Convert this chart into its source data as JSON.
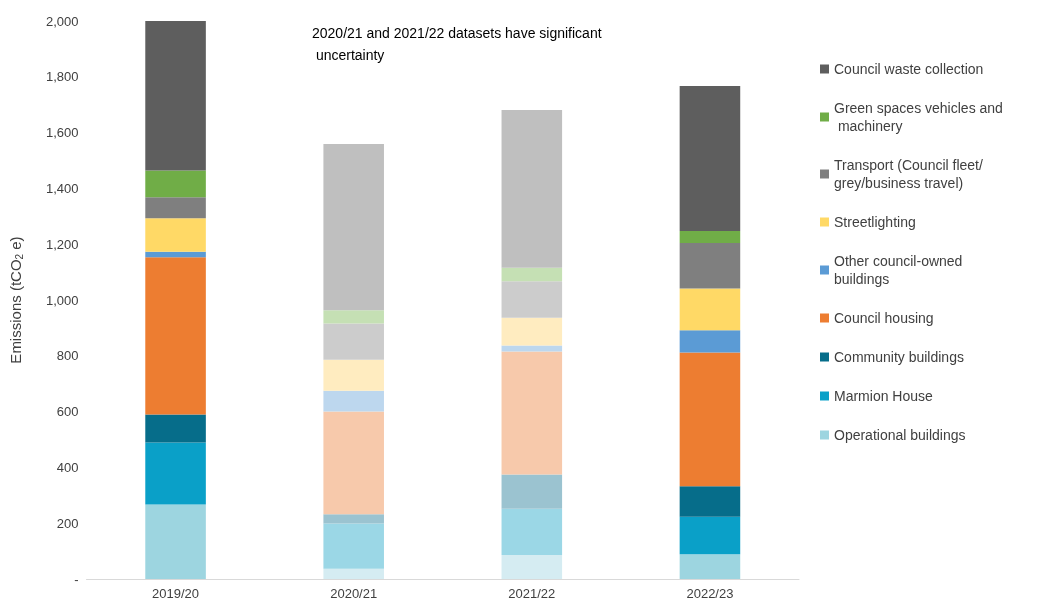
{
  "chart_data": {
    "type": "bar",
    "stacked": true,
    "categories": [
      "2019/20",
      "2020/21",
      "2021/22",
      "2022/23"
    ],
    "ylabel": "Emissions (tCO$_{2}$ e)",
    "ylim": [
      0,
      2000
    ],
    "yticks": [
      {
        "value": 0,
        "label": "-"
      },
      {
        "value": 200,
        "label": "200"
      },
      {
        "value": 400,
        "label": "400"
      },
      {
        "value": 600,
        "label": "600"
      },
      {
        "value": 800,
        "label": "800"
      },
      {
        "value": 1000,
        "label": "1,000"
      },
      {
        "value": 1200,
        "label": "1,200"
      },
      {
        "value": 1400,
        "label": "1,400"
      },
      {
        "value": 1600,
        "label": "1,600"
      },
      {
        "value": 1800,
        "label": "1,800"
      },
      {
        "value": 2000,
        "label": "2,000"
      }
    ],
    "grid": false,
    "legend": "right",
    "annotations": [
      "2020/21 and 2021/22 datasets have significant uncertainty"
    ],
    "series": [
      {
        "name": "Operational buildings",
        "color": "#9dd5e0",
        "colors": [
          "#9dd5e0",
          "#d5ecf2",
          "#d5ecf2",
          "#9dd5e0"
        ],
        "values": [
          267,
          37,
          86,
          89
        ]
      },
      {
        "name": "Marmion House",
        "color": "#0aa0c8",
        "colors": [
          "#0aa0c8",
          "#9bd7e6",
          "#9bd7e6",
          "#0aa0c8"
        ],
        "values": [
          222,
          162,
          166,
          134
        ]
      },
      {
        "name": "Community buildings",
        "color": "#066d8a",
        "colors": [
          "#066d8a",
          "#9bc3d0",
          "#9bc3d0",
          "#066d8a"
        ],
        "values": [
          101,
          33,
          123,
          109
        ]
      },
      {
        "name": "Council housing",
        "color": "#ed7d31",
        "colors": [
          "#ed7d31",
          "#f7c9ab",
          "#f7c9ab",
          "#ed7d31"
        ],
        "values": [
          563,
          368,
          440,
          480
        ]
      },
      {
        "name": "Other council-owned buildings",
        "color": "#5b9bd5",
        "colors": [
          "#5b9bd5",
          "#bdd7ee",
          "#bdd7ee",
          "#5b9bd5"
        ],
        "values": [
          20,
          75,
          22,
          80
        ]
      },
      {
        "name": "Streetlighting",
        "color": "#ffd966",
        "colors": [
          "#ffd966",
          "#ffecc0",
          "#ffecc0",
          "#ffd966"
        ],
        "values": [
          120,
          111,
          99,
          149
        ]
      },
      {
        "name": "Transport (Council fleet/grey/business travel)",
        "color": "#7f7f7f",
        "colors": [
          "#7f7f7f",
          "#cccccc",
          "#cccccc",
          "#7f7f7f"
        ],
        "values": [
          75,
          130,
          131,
          163
        ]
      },
      {
        "name": "Green spaces vehicles and machinery",
        "color": "#70ad47",
        "colors": [
          "#70ad47",
          "#c5e0b4",
          "#c5e0b4",
          "#70ad47"
        ],
        "values": [
          96,
          47,
          49,
          43
        ]
      },
      {
        "name": "Council waste collection",
        "color": "#5e5e5e",
        "colors": [
          "#5e5e5e",
          "#bfbfbf",
          "#bfbfbf",
          "#5e5e5e"
        ],
        "values": [
          536,
          596,
          565,
          520
        ]
      }
    ]
  }
}
